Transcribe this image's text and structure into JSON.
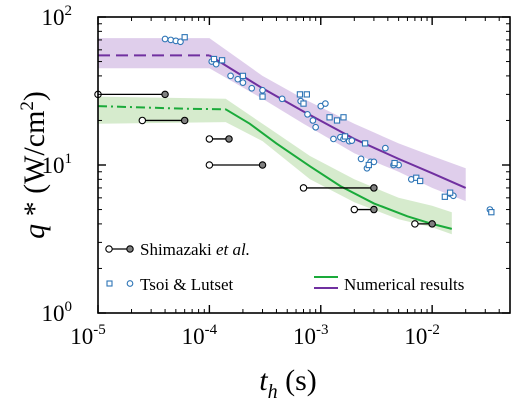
{
  "chart_data": {
    "type": "scatter",
    "x_scale": "log",
    "y_scale": "log",
    "xlim": [
      1e-05,
      0.05
    ],
    "ylim": [
      1,
      100
    ],
    "x_ticks": [
      {
        "value": 1e-05,
        "base": "10",
        "exp": "-5"
      },
      {
        "value": 0.0001,
        "base": "10",
        "exp": "-4"
      },
      {
        "value": 0.001,
        "base": "10",
        "exp": "-3"
      },
      {
        "value": 0.01,
        "base": "10",
        "exp": "-2"
      }
    ],
    "y_ticks": [
      {
        "value": 1,
        "base": "10",
        "exp": "0"
      },
      {
        "value": 10,
        "base": "10",
        "exp": "1"
      },
      {
        "value": 100,
        "base": "10",
        "exp": "2"
      }
    ],
    "xlabel": {
      "main": "t",
      "sub": "h",
      "unit": " (s)"
    },
    "ylabel": {
      "main": "q",
      "rest": " * (W/cm",
      "sup": "2",
      "close": ")"
    },
    "grid": false,
    "legend": {
      "position": "bottom",
      "entries": [
        {
          "series": "shimazaki",
          "text": "Shimazaki ",
          "italic": "et al."
        },
        {
          "series": "tsoi",
          "text": "Tsoi & Lutset"
        },
        {
          "series": "green",
          "text": "Numerical results"
        }
      ]
    },
    "colors": {
      "purple": "#7030a0",
      "purple_band": "#d9c6e8",
      "green": "#1aaa3a",
      "green_band": "#cfe7c4",
      "blue": "#2e75b6",
      "black": "#000000",
      "gray_fill": "#808080"
    },
    "series": [
      {
        "id": "shimazaki",
        "kind": "range-bars",
        "color": "#000000",
        "points": [
          {
            "x0": 1e-05,
            "x1": 4e-05,
            "y": 30
          },
          {
            "x0": 2.5e-05,
            "x1": 6e-05,
            "y": 20
          },
          {
            "x0": 0.0001,
            "x1": 0.00015,
            "y": 15
          },
          {
            "x0": 0.0001,
            "x1": 0.0003,
            "y": 10
          },
          {
            "x0": 0.0007,
            "x1": 0.003,
            "y": 7
          },
          {
            "x0": 0.002,
            "x1": 0.003,
            "y": 5
          },
          {
            "x0": 0.007,
            "x1": 0.01,
            "y": 4
          }
        ]
      },
      {
        "id": "tsoi",
        "kind": "scatter",
        "color": "#2e75b6",
        "circles": [
          [
            4e-05,
            71
          ],
          [
            4.5e-05,
            70
          ],
          [
            5e-05,
            69
          ],
          [
            5.5e-05,
            68
          ],
          [
            0.000105,
            50
          ],
          [
            0.000115,
            48
          ],
          [
            0.000155,
            40
          ],
          [
            0.00018,
            38
          ],
          [
            0.0002,
            36
          ],
          [
            0.00024,
            33
          ],
          [
            0.0003,
            32
          ],
          [
            0.00045,
            28
          ],
          [
            0.00066,
            27
          ],
          [
            0.00076,
            22
          ],
          [
            0.00085,
            20
          ],
          [
            0.0009,
            18
          ],
          [
            0.001,
            25
          ],
          [
            0.0011,
            26
          ],
          [
            0.0013,
            15
          ],
          [
            0.0015,
            15.4
          ],
          [
            0.0016,
            15
          ],
          [
            0.0018,
            14.5
          ],
          [
            0.0019,
            14.6
          ],
          [
            0.0023,
            11
          ],
          [
            0.0026,
            9.5
          ],
          [
            0.0028,
            10.5
          ],
          [
            0.003,
            10.5
          ],
          [
            0.0038,
            13
          ],
          [
            0.0045,
            10
          ],
          [
            0.005,
            10
          ],
          [
            0.0065,
            8
          ],
          [
            0.0145,
            6.4
          ],
          [
            0.0155,
            6.2
          ],
          [
            0.033,
            5
          ]
        ],
        "squares": [
          [
            6e-05,
            73
          ],
          [
            0.00011,
            52
          ],
          [
            0.00013,
            51
          ],
          [
            0.0002,
            40
          ],
          [
            0.0003,
            29
          ],
          [
            0.00065,
            30
          ],
          [
            0.00075,
            30
          ],
          [
            0.0007,
            26
          ],
          [
            0.0012,
            21
          ],
          [
            0.0014,
            20
          ],
          [
            0.0016,
            21
          ],
          [
            0.00165,
            15.6
          ],
          [
            0.0025,
            14
          ],
          [
            0.0027,
            10
          ],
          [
            0.0046,
            10.3
          ],
          [
            0.0072,
            8.2
          ],
          [
            0.0078,
            7.8
          ],
          [
            0.013,
            6.1
          ],
          [
            0.0145,
            6.5
          ],
          [
            0.034,
            4.8
          ]
        ]
      },
      {
        "id": "green",
        "kind": "line",
        "color": "#1aaa3a",
        "dashed": [
          [
            1e-05,
            25
          ],
          [
            6e-05,
            24
          ],
          [
            0.00014,
            23.8
          ]
        ],
        "solid": [
          [
            0.00014,
            23.8
          ],
          [
            0.00023,
            19
          ],
          [
            0.0004,
            14
          ],
          [
            0.0008,
            9.8
          ],
          [
            0.0015,
            7.2
          ],
          [
            0.003,
            5.5
          ],
          [
            0.006,
            4.5
          ],
          [
            0.01,
            4
          ],
          [
            0.015,
            3.7
          ]
        ],
        "band_upper": [
          [
            1e-05,
            29
          ],
          [
            0.00014,
            28
          ],
          [
            0.0003,
            19
          ],
          [
            0.0008,
            11.5
          ],
          [
            0.002,
            8
          ],
          [
            0.005,
            6
          ],
          [
            0.01,
            5.3
          ],
          [
            0.015,
            4.8
          ]
        ],
        "band_lower": [
          [
            1e-05,
            19
          ],
          [
            0.00014,
            19.5
          ],
          [
            0.0003,
            14.5
          ],
          [
            0.0008,
            8
          ],
          [
            0.002,
            5.6
          ],
          [
            0.005,
            4.3
          ],
          [
            0.01,
            3.8
          ],
          [
            0.015,
            3.4
          ]
        ]
      },
      {
        "id": "purple",
        "kind": "line",
        "color": "#7030a0",
        "dashed": [
          [
            1e-05,
            55
          ],
          [
            0.0001,
            55
          ]
        ],
        "solid": [
          [
            0.0001,
            55
          ],
          [
            0.0003,
            33
          ],
          [
            0.0007,
            23
          ],
          [
            0.002,
            15
          ],
          [
            0.005,
            11
          ],
          [
            0.01,
            8.8
          ],
          [
            0.02,
            7
          ]
        ],
        "band_upper": [
          [
            1e-05,
            72
          ],
          [
            0.0001,
            72
          ],
          [
            0.0003,
            40
          ],
          [
            0.0007,
            28
          ],
          [
            0.002,
            19
          ],
          [
            0.005,
            14
          ],
          [
            0.01,
            11.5
          ],
          [
            0.02,
            9.5
          ]
        ],
        "band_lower": [
          [
            1e-05,
            45
          ],
          [
            0.0001,
            45
          ],
          [
            0.0003,
            28
          ],
          [
            0.0007,
            19
          ],
          [
            0.002,
            12
          ],
          [
            0.005,
            9
          ],
          [
            0.01,
            7
          ],
          [
            0.02,
            5.7
          ]
        ]
      }
    ]
  }
}
